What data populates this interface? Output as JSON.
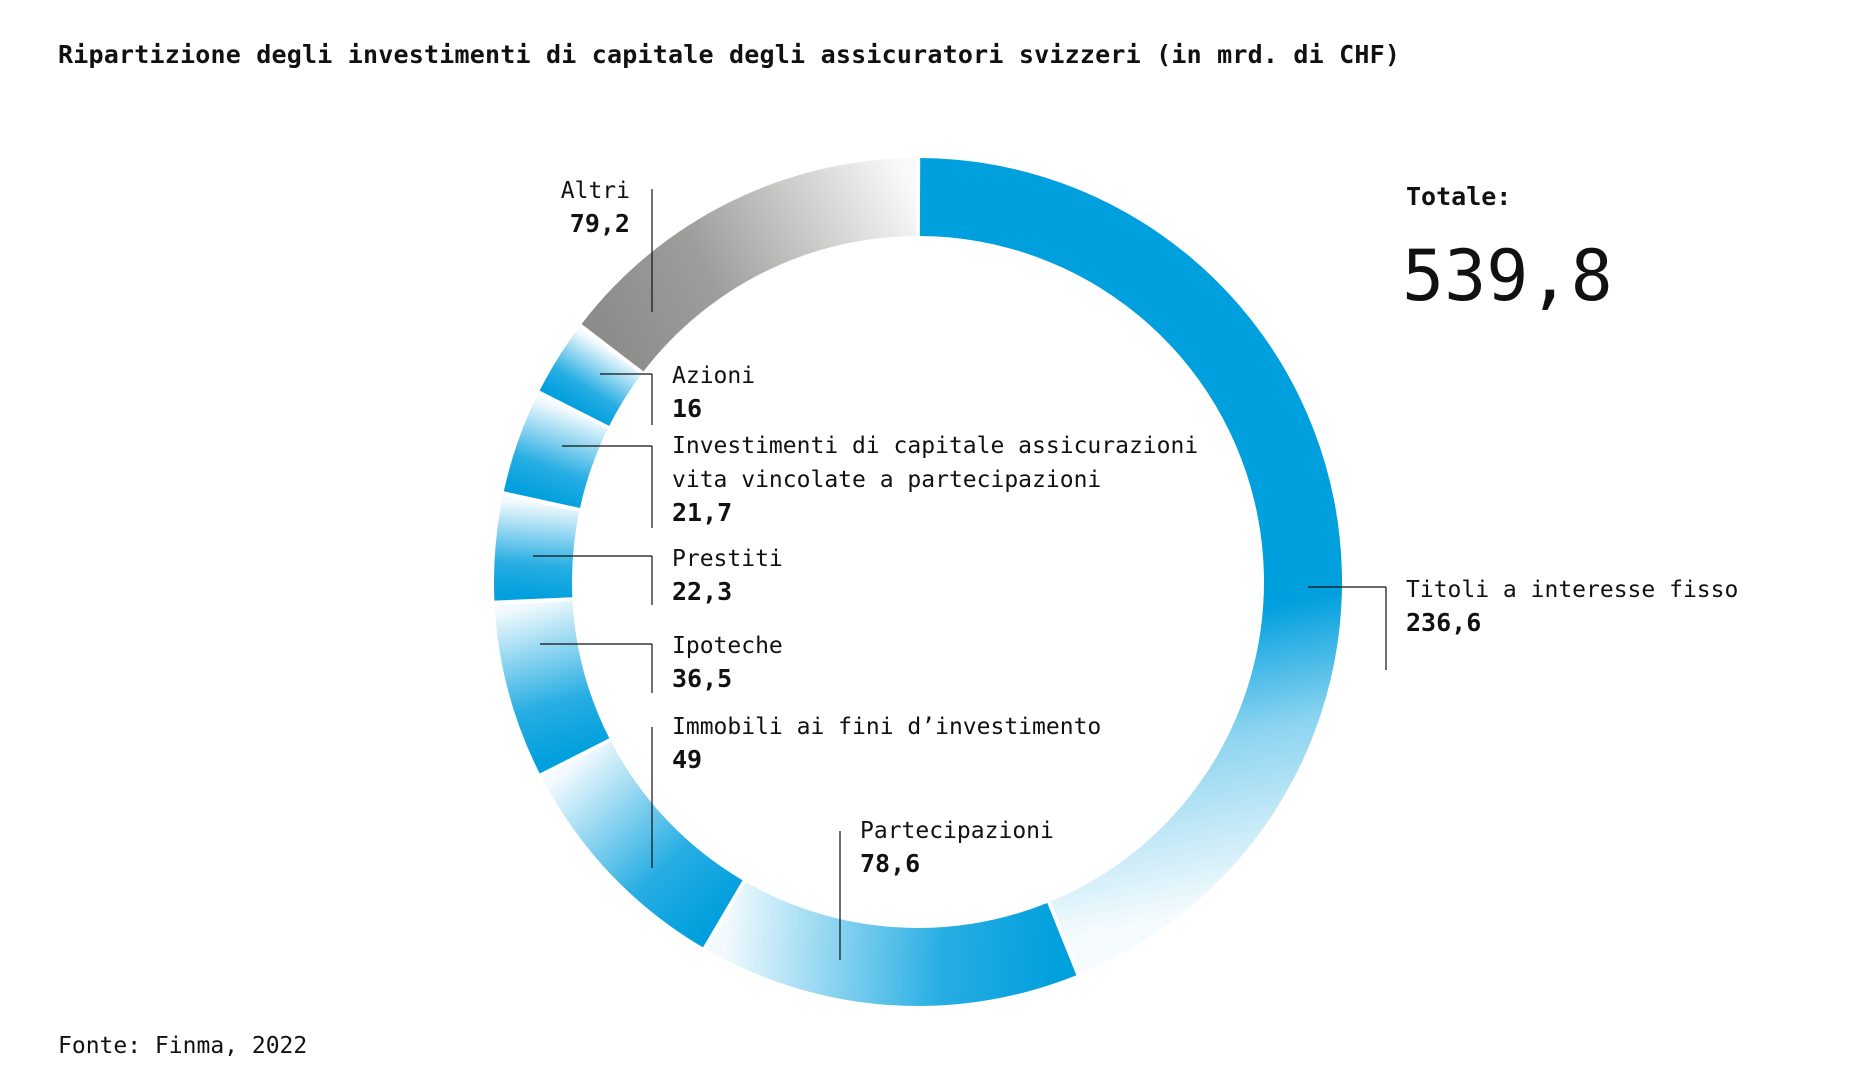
{
  "title": "Ripartizione degli investimenti di capitale degli assicuratori svizzeri (in mrd. di CHF)",
  "source": "Fonte: Finma, 2022",
  "total": {
    "label": "Totale:",
    "value": "539,8"
  },
  "colors": {
    "accent": "#009fde",
    "grey": "#8c8c8a",
    "text": "#111111"
  },
  "chart_data": {
    "type": "pie",
    "variant": "donut",
    "total": 539.8,
    "slices": [
      {
        "label": "Titoli a interesse fisso",
        "value": 236.6,
        "value_text": "236,6",
        "lines": [
          "Titoli a interesse fisso"
        ],
        "color": "#009fde"
      },
      {
        "label": "Partecipazioni",
        "value": 78.6,
        "value_text": "78,6",
        "lines": [
          "Partecipazioni"
        ],
        "color": "#009fde"
      },
      {
        "label": "Immobili ai fini d’investimento",
        "value": 49,
        "value_text": "49",
        "lines": [
          "Immobili ai fini d’investimento"
        ],
        "color": "#009fde"
      },
      {
        "label": "Ipoteche",
        "value": 36.5,
        "value_text": "36,5",
        "lines": [
          "Ipoteche"
        ],
        "color": "#009fde"
      },
      {
        "label": "Prestiti",
        "value": 22.3,
        "value_text": "22,3",
        "lines": [
          "Prestiti"
        ],
        "color": "#009fde"
      },
      {
        "label": "Investimenti di capitale assicurazioni vita vincolate a partecipazioni",
        "value": 21.7,
        "value_text": "21,7",
        "lines": [
          "Investimenti di capitale assicurazioni",
          "vita vincolate a partecipazioni"
        ],
        "color": "#009fde"
      },
      {
        "label": "Azioni",
        "value": 16,
        "value_text": "16",
        "lines": [
          "Azioni"
        ],
        "color": "#009fde"
      },
      {
        "label": "Altri",
        "value": 79.2,
        "value_text": "79,2",
        "lines": [
          "Altri"
        ],
        "color": "#8c8c8a"
      }
    ]
  }
}
